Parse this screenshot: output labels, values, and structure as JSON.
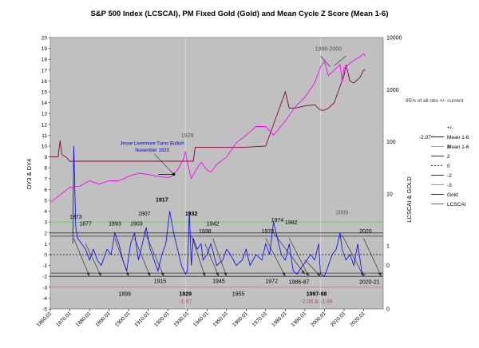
{
  "chart_data": {
    "type": "line",
    "title": "S&P 500 Index (LCSCAI), PM Fixed Gold (Gold) and Mean Cycle Z Score (Mean 1-6)",
    "ylabel": "DY3 & DY4",
    "y2label": "LCSCAI & GOLD",
    "ylim": [
      -5,
      20
    ],
    "y2_log": true,
    "y2_ticks": [
      "10000",
      "1000",
      "100",
      "10",
      "1",
      "0",
      "0"
    ],
    "yticks": [
      20,
      19,
      18,
      17,
      16,
      15,
      14,
      13,
      12,
      11,
      10,
      9,
      8,
      7,
      6,
      5,
      4,
      3,
      2,
      1,
      0,
      -1,
      -2,
      -3,
      -4,
      -5
    ],
    "xlim": [
      1860,
      2030
    ],
    "x_ticks": [
      "1860.01",
      "1870.01",
      "1880.01",
      "1890.01",
      "1900.01",
      "1910.01",
      "1920.01",
      "1930.01",
      "1940.01",
      "1950.01",
      "1960.01",
      "1970.01",
      "1980.01",
      "1990.01",
      "2000.01",
      "2010.01",
      "2020.01"
    ],
    "ref_lines": [
      {
        "name": "3",
        "value": 3,
        "color": "#66cc66"
      },
      {
        "name": "2",
        "value": 2,
        "color": "#333333"
      },
      {
        "name": "0",
        "value": 0,
        "color": "#333333",
        "dashed": true
      },
      {
        "name": "-2",
        "value": -2,
        "color": "#333333"
      },
      {
        "name": "-3",
        "value": -3,
        "color": "#ff6666"
      }
    ],
    "series": [
      {
        "name": "Mean 1-6",
        "color": "#0000ff",
        "x": [
          1871.5,
          1872,
          1873,
          1874,
          1876,
          1878,
          1880,
          1882,
          1884,
          1886,
          1889,
          1891,
          1893,
          1895,
          1897,
          1899,
          1901,
          1903,
          1905,
          1907,
          1909,
          1911,
          1913,
          1915,
          1917,
          1919,
          1921,
          1923,
          1925,
          1927,
          1929,
          1930,
          1931,
          1932,
          1933,
          1935,
          1937,
          1938,
          1940,
          1942,
          1945,
          1948,
          1950,
          1952,
          1955,
          1958,
          1960,
          1962,
          1965,
          1968,
          1970,
          1972,
          1974,
          1976,
          1978,
          1980,
          1982,
          1984,
          1986,
          1987,
          1989,
          1991,
          1993,
          1995,
          1997,
          1998,
          2000,
          2002,
          2004,
          2006,
          2008,
          2009,
          2011,
          2013,
          2015,
          2017,
          2019,
          2020,
          2021
        ],
        "y": [
          1,
          10,
          2.5,
          1.5,
          1,
          0.5,
          -0.5,
          0.5,
          -0.5,
          -1,
          0.5,
          0,
          2,
          1,
          -0.5,
          -1.5,
          1,
          2,
          -0.5,
          1,
          2.5,
          0.5,
          -0.5,
          -1.5,
          0,
          1,
          4,
          2,
          0.5,
          -1,
          -1.8,
          -1.5,
          4,
          -1,
          1.5,
          0.5,
          1,
          -0.5,
          0,
          1,
          -1,
          -0.5,
          0.5,
          0,
          -1,
          -0.5,
          0.5,
          -1,
          0,
          -0.5,
          1,
          0,
          3,
          1.5,
          0,
          -0.5,
          1,
          -1.5,
          -1.8,
          -1.5,
          -1,
          -0.5,
          0,
          -0.5,
          1,
          -1.8,
          -2,
          -1,
          0,
          0.5,
          2,
          0.5,
          -0.5,
          0,
          -1,
          1,
          -1.5,
          -1.9,
          -1.8
        ]
      },
      {
        "name": "Gold",
        "color": "#800040",
        "x": [
          1860,
          1864,
          1865,
          1866,
          1868,
          1870,
          1880,
          1900,
          1920,
          1933,
          1934,
          1935,
          1950,
          1960,
          1970,
          1972,
          1975,
          1980,
          1982,
          1985,
          1990,
          1995,
          1998,
          2000,
          2002,
          2005,
          2008,
          2010,
          2011,
          2013,
          2015,
          2018,
          2020,
          2021
        ],
        "y": [
          9,
          9,
          10.5,
          9.2,
          9,
          8.6,
          8.6,
          8.6,
          8.6,
          8.6,
          9.9,
          9.9,
          9.9,
          9.9,
          10,
          11,
          12.5,
          15,
          13.5,
          13.5,
          13.7,
          13.8,
          13.3,
          13.3,
          13.5,
          14,
          15.5,
          16.5,
          17.5,
          16,
          15.8,
          16.3,
          17,
          17
        ]
      },
      {
        "name": "LCSCAI",
        "color": "#ff00ff",
        "x": [
          1860,
          1865,
          1870,
          1875,
          1880,
          1885,
          1890,
          1895,
          1900,
          1905,
          1910,
          1915,
          1920,
          1922,
          1925,
          1928,
          1929,
          1930,
          1932,
          1935,
          1937,
          1940,
          1942,
          1945,
          1950,
          1955,
          1960,
          1965,
          1970,
          1974,
          1980,
          1985,
          1990,
          1995,
          1998,
          2000,
          2002,
          2005,
          2008,
          2009,
          2010,
          2013,
          2015,
          2018,
          2020,
          2021
        ],
        "y": [
          4.8,
          5.5,
          6.2,
          6.3,
          6.8,
          6.5,
          6.8,
          6.8,
          7.2,
          7.5,
          7.4,
          7.2,
          7.1,
          7.2,
          7.8,
          8.8,
          9.5,
          8.5,
          7.0,
          8.0,
          8.5,
          7.8,
          7.6,
          8.3,
          9.0,
          10.3,
          11.0,
          11.8,
          11.8,
          11.0,
          12.3,
          13.6,
          14.5,
          15.8,
          17.3,
          17.8,
          16.5,
          17.0,
          17.5,
          16.0,
          17.2,
          17.6,
          17.9,
          18.2,
          18.5,
          18.3
        ]
      }
    ],
    "legend": {
      "placement": "right",
      "items": [
        "+/-",
        "-2.07",
        "Mean 1-6",
        "3",
        "2",
        "0",
        "-2",
        "-3",
        "Gold",
        "LCSCAI"
      ]
    },
    "annotations": {
      "obs_note": "95% of all obs +/- current",
      "livermore": [
        "Jesse Livermore Turns Bullish",
        "November 1923"
      ],
      "labels": [
        {
          "text": "1998-2000",
          "x": 2002,
          "y": 18.8,
          "color": "#555555"
        },
        {
          "text": "1929",
          "x": 1930,
          "y": 10.8,
          "color": "#555555"
        },
        {
          "text": "1917",
          "x": 1917,
          "y": 4.9,
          "color": "#000000",
          "bold": true
        },
        {
          "text": "1873",
          "x": 1873,
          "y": 3.3,
          "color": "#000000"
        },
        {
          "text": "1877",
          "x": 1878,
          "y": 2.7,
          "color": "#000000"
        },
        {
          "text": "1893",
          "x": 1893,
          "y": 2.7,
          "color": "#000000"
        },
        {
          "text": "1903",
          "x": 1904,
          "y": 2.7,
          "color": "#000000"
        },
        {
          "text": "1907",
          "x": 1908,
          "y": 3.6,
          "color": "#000000"
        },
        {
          "text": "1932",
          "x": 1932,
          "y": 3.6,
          "color": "#000000",
          "bold": true
        },
        {
          "text": "1942",
          "x": 1943,
          "y": 2.7,
          "color": "#000000"
        },
        {
          "text": "1938",
          "x": 1939,
          "y": 2.0,
          "color": "#000000"
        },
        {
          "text": "1970",
          "x": 1971,
          "y": 2.0,
          "color": "#000000"
        },
        {
          "text": "1974",
          "x": 1976,
          "y": 3.0,
          "color": "#000000"
        },
        {
          "text": "1982",
          "x": 1983,
          "y": 2.8,
          "color": "#000000"
        },
        {
          "text": "2009",
          "x": 2009,
          "y": 3.7,
          "color": "#555555"
        },
        {
          "text": "2020",
          "x": 2021,
          "y": 2.0,
          "color": "#000000"
        },
        {
          "text": "1915",
          "x": 1916,
          "y": -2.6,
          "color": "#000000"
        },
        {
          "text": "1945",
          "x": 1946,
          "y": -2.6,
          "color": "#000000"
        },
        {
          "text": "1972",
          "x": 1973,
          "y": -2.6,
          "color": "#000000"
        },
        {
          "text": "1986-87",
          "x": 1987,
          "y": -2.7,
          "color": "#000000"
        },
        {
          "text": "2020-21",
          "x": 2023,
          "y": -2.7,
          "color": "#000000"
        },
        {
          "text": "1899",
          "x": 1898,
          "y": -3.8,
          "color": "#000000"
        },
        {
          "text": "1929",
          "x": 1929,
          "y": -3.8,
          "color": "#000000",
          "bold": true
        },
        {
          "text": "-1.97",
          "x": 1929,
          "y": -4.5,
          "color": "#ff3333"
        },
        {
          "text": "1955",
          "x": 1956,
          "y": -3.8,
          "color": "#000000"
        },
        {
          "text": "1997-98",
          "x": 1996,
          "y": -3.8,
          "color": "#000000",
          "bold": true
        },
        {
          "text": "-2.06 & -1.98",
          "x": 1996,
          "y": -4.5,
          "color": "#ff3333"
        }
      ],
      "trend_lines": [
        [
          1872,
          1.5,
          1880,
          -2
        ],
        [
          1878,
          1,
          1886,
          -2
        ],
        [
          1893,
          1.5,
          1900,
          -2
        ],
        [
          1903,
          1.5,
          1911,
          -2
        ],
        [
          1908,
          2.2,
          1918,
          -2
        ],
        [
          1932,
          1.8,
          1939,
          -2
        ],
        [
          1939,
          1,
          1946,
          -2
        ],
        [
          1943,
          1.5,
          1950,
          -2
        ],
        [
          1970,
          1.5,
          1980,
          -2
        ],
        [
          1982,
          1.5,
          1992,
          -2
        ],
        [
          2009,
          1.8,
          2020,
          -2
        ],
        [
          2020,
          1.5,
          2029,
          -2
        ],
        [
          1974,
          2,
          1990,
          -1.8
        ],
        [
          1990,
          -0.5,
          1998,
          -2
        ]
      ]
    }
  }
}
